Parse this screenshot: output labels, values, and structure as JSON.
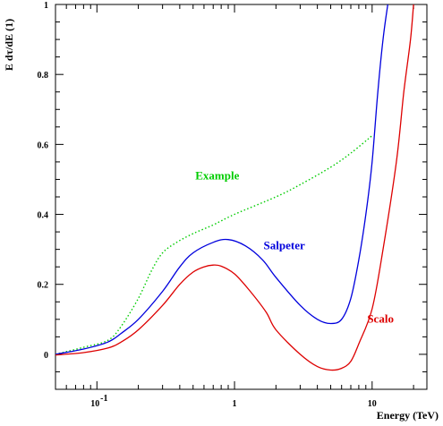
{
  "chart_data": {
    "type": "line",
    "x_scale": "log",
    "xlim": [
      0.05,
      25
    ],
    "ylim": [
      -0.1,
      1.0
    ],
    "xlabel": "Energy (TeV)",
    "ylabel": "E dτ/dE (1)",
    "grid": false,
    "legend": "none",
    "x_ticks": [
      {
        "value": 0.1,
        "base": "10",
        "exp": "-1"
      },
      {
        "value": 1,
        "label": "1"
      },
      {
        "value": 10,
        "label": "10"
      }
    ],
    "y_ticks": [
      {
        "value": 0,
        "label": "0"
      },
      {
        "value": 0.2,
        "label": "0.2"
      },
      {
        "value": 0.4,
        "label": "0.4"
      },
      {
        "value": 0.6,
        "label": "0.6"
      },
      {
        "value": 0.8,
        "label": "0.8"
      },
      {
        "value": 1.0,
        "label": "1"
      }
    ],
    "series": [
      {
        "name": "Example",
        "color": "#00cc00",
        "style": "dotted",
        "label_at": [
          0.75,
          0.5
        ],
        "points": [
          [
            0.05,
            0.0
          ],
          [
            0.08,
            0.02
          ],
          [
            0.12,
            0.04
          ],
          [
            0.15,
            0.08
          ],
          [
            0.2,
            0.16
          ],
          [
            0.25,
            0.24
          ],
          [
            0.3,
            0.29
          ],
          [
            0.38,
            0.32
          ],
          [
            0.5,
            0.345
          ],
          [
            0.7,
            0.37
          ],
          [
            1.0,
            0.4
          ],
          [
            2.0,
            0.45
          ],
          [
            3.0,
            0.485
          ],
          [
            5.0,
            0.535
          ],
          [
            7.0,
            0.575
          ],
          [
            10.0,
            0.625
          ]
        ]
      },
      {
        "name": "Salpeter",
        "color": "#0000dd",
        "style": "solid",
        "label_at": [
          2.3,
          0.3
        ],
        "points": [
          [
            0.05,
            0.0
          ],
          [
            0.08,
            0.015
          ],
          [
            0.12,
            0.035
          ],
          [
            0.15,
            0.06
          ],
          [
            0.2,
            0.1
          ],
          [
            0.3,
            0.18
          ],
          [
            0.4,
            0.25
          ],
          [
            0.5,
            0.29
          ],
          [
            0.7,
            0.32
          ],
          [
            0.9,
            0.328
          ],
          [
            1.2,
            0.31
          ],
          [
            1.6,
            0.27
          ],
          [
            2.0,
            0.22
          ],
          [
            3.0,
            0.14
          ],
          [
            4.0,
            0.1
          ],
          [
            5.0,
            0.088
          ],
          [
            6.0,
            0.1
          ],
          [
            7.0,
            0.16
          ],
          [
            8.0,
            0.27
          ],
          [
            9.0,
            0.4
          ],
          [
            10.0,
            0.55
          ],
          [
            11.0,
            0.75
          ],
          [
            12.0,
            0.9
          ],
          [
            13.0,
            1.0
          ]
        ]
      },
      {
        "name": "Scalo",
        "color": "#dd0000",
        "style": "solid",
        "label_at": [
          11.5,
          0.09
        ],
        "points": [
          [
            0.05,
            -0.002
          ],
          [
            0.08,
            0.005
          ],
          [
            0.12,
            0.018
          ],
          [
            0.15,
            0.035
          ],
          [
            0.2,
            0.07
          ],
          [
            0.3,
            0.14
          ],
          [
            0.4,
            0.2
          ],
          [
            0.5,
            0.235
          ],
          [
            0.6,
            0.25
          ],
          [
            0.7,
            0.255
          ],
          [
            0.8,
            0.252
          ],
          [
            1.0,
            0.23
          ],
          [
            1.3,
            0.18
          ],
          [
            1.7,
            0.12
          ],
          [
            2.0,
            0.07
          ],
          [
            3.0,
            0.0
          ],
          [
            4.0,
            -0.035
          ],
          [
            5.0,
            -0.045
          ],
          [
            6.0,
            -0.04
          ],
          [
            7.0,
            -0.02
          ],
          [
            8.0,
            0.03
          ],
          [
            10.0,
            0.13
          ],
          [
            12.0,
            0.3
          ],
          [
            15.0,
            0.55
          ],
          [
            17.0,
            0.75
          ],
          [
            19.0,
            0.9
          ],
          [
            20.0,
            1.0
          ]
        ]
      }
    ]
  }
}
